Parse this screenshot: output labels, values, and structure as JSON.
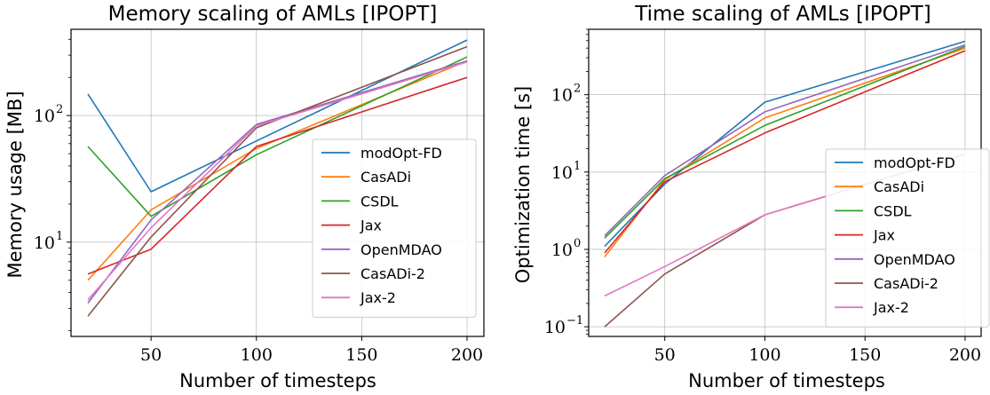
{
  "chart_data": [
    {
      "type": "line",
      "title": "Memory scaling of AMLs [IPOPT]",
      "xlabel": "Number of timesteps",
      "ylabel": "Memory usage [MB]",
      "x": [
        20,
        50,
        100,
        200
      ],
      "xlim": [
        12,
        208
      ],
      "xticks": [
        "50",
        "100",
        "150",
        "200"
      ],
      "ylog": true,
      "ylim": [
        1.8,
        480
      ],
      "yticks": [
        {
          "base": "10",
          "exp": "1",
          "value": 10
        },
        {
          "base": "10",
          "exp": "2",
          "value": 100
        }
      ],
      "grid": true,
      "legend_position": "center-right",
      "series": [
        {
          "name": "modOpt-FD",
          "color": "#1f77b4",
          "values": [
            148,
            25,
            63,
            395
          ]
        },
        {
          "name": "CasADi",
          "color": "#ff7f0e",
          "values": [
            5.0,
            18,
            55,
            270
          ]
        },
        {
          "name": "CSDL",
          "color": "#2ca02c",
          "values": [
            57,
            16,
            49,
            290
          ]
        },
        {
          "name": "Jax",
          "color": "#d62728",
          "values": [
            5.6,
            8.8,
            57,
            200
          ]
        },
        {
          "name": "OpenMDAO",
          "color": "#9467bd",
          "values": [
            3.3,
            15,
            85,
            270
          ]
        },
        {
          "name": "CasADi-2",
          "color": "#8c564b",
          "values": [
            2.6,
            11,
            80,
            350
          ]
        },
        {
          "name": "Jax-2",
          "color": "#e377c2",
          "values": [
            3.5,
            13,
            83,
            265
          ]
        }
      ]
    },
    {
      "type": "line",
      "title": "Time scaling of AMLs [IPOPT]",
      "xlabel": "Number of timesteps",
      "ylabel": "Optimization time [s]",
      "x": [
        20,
        50,
        100,
        200
      ],
      "xlim": [
        12,
        208
      ],
      "xticks": [
        "50",
        "100",
        "150",
        "200"
      ],
      "ylog": true,
      "ylim": [
        0.075,
        700
      ],
      "yticks": [
        {
          "base": "10",
          "exp": "−1",
          "value": 0.1
        },
        {
          "base": "10",
          "exp": "0",
          "value": 1
        },
        {
          "base": "10",
          "exp": "1",
          "value": 10
        },
        {
          "base": "10",
          "exp": "2",
          "value": 100
        }
      ],
      "grid": true,
      "legend_position": "lower-right",
      "series": [
        {
          "name": "modOpt-FD",
          "color": "#1f77b4",
          "values": [
            1.1,
            7,
            80,
            490
          ]
        },
        {
          "name": "CasADi",
          "color": "#ff7f0e",
          "values": [
            0.8,
            8,
            50,
            400
          ]
        },
        {
          "name": "CSDL",
          "color": "#2ca02c",
          "values": [
            1.4,
            8.2,
            40,
            420
          ]
        },
        {
          "name": "Jax",
          "color": "#d62728",
          "values": [
            0.9,
            7.5,
            32,
            370
          ]
        },
        {
          "name": "OpenMDAO",
          "color": "#9467bd",
          "values": [
            1.5,
            9,
            60,
            440
          ]
        },
        {
          "name": "CasADi-2",
          "color": "#8c564b",
          "values": [
            0.1,
            0.48,
            2.8,
            17
          ]
        },
        {
          "name": "Jax-2",
          "color": "#e377c2",
          "values": [
            0.25,
            0.6,
            2.8,
            17
          ]
        }
      ]
    }
  ]
}
